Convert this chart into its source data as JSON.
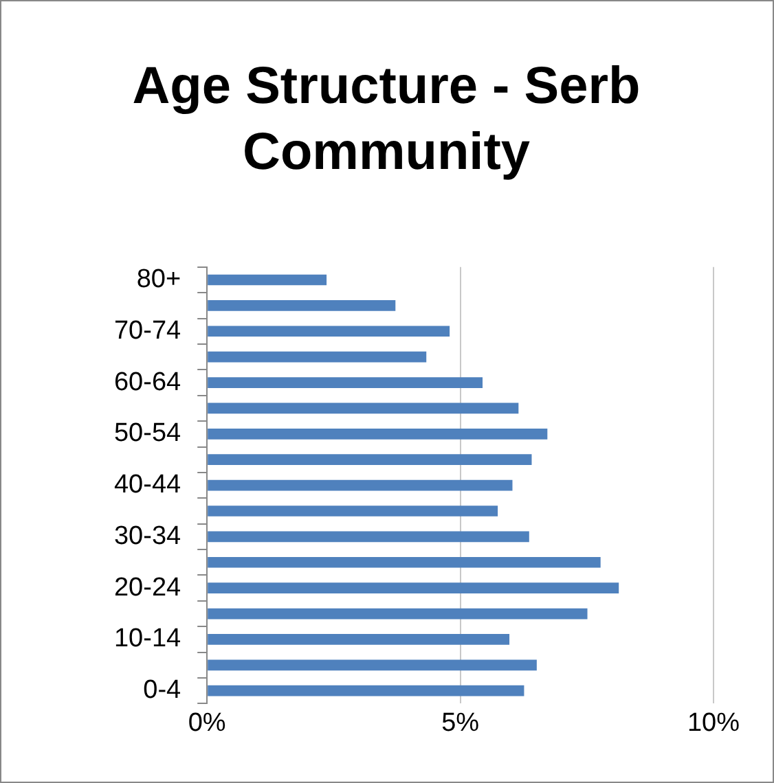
{
  "chart_data": {
    "type": "bar",
    "orientation": "horizontal",
    "title": "Age Structure - Serb Community",
    "categories": [
      "80+",
      null,
      "70-74",
      null,
      "60-64",
      null,
      "50-54",
      null,
      "40-44",
      null,
      "30-34",
      null,
      "20-24",
      null,
      "10-14",
      null,
      "0-4"
    ],
    "values": [
      2.36,
      3.72,
      4.79,
      4.33,
      5.44,
      6.15,
      6.72,
      6.41,
      6.03,
      5.74,
      6.36,
      7.77,
      8.13,
      7.51,
      5.97,
      6.51,
      6.26
    ],
    "color": "#4f81bd",
    "xlim": [
      0,
      10
    ],
    "xticks": [
      {
        "value": 0,
        "label": "0%"
      },
      {
        "value": 5,
        "label": "5%"
      },
      {
        "value": 10,
        "label": "10%"
      }
    ],
    "grid": "x",
    "legend": false
  }
}
